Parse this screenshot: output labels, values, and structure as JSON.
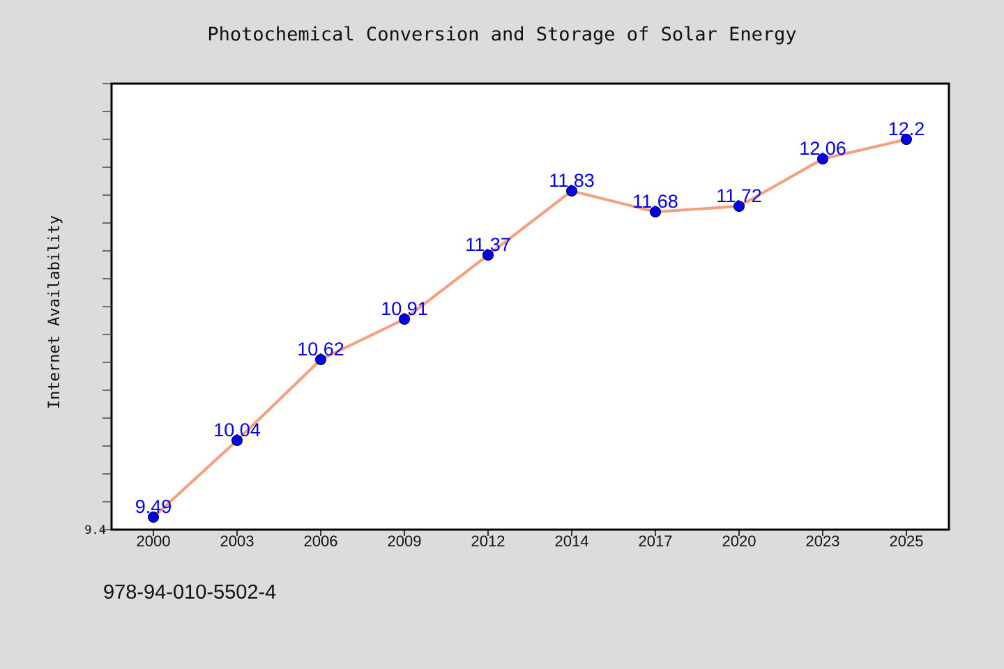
{
  "title": "Photochemical Conversion and Storage of Solar Energy",
  "isbn": "978-94-010-5502-4",
  "colors": {
    "background": "#dcdcdc",
    "plot_background": "#ffffff",
    "line": "#f4a07c",
    "marker": "#0000ee",
    "label": "#0000ee"
  },
  "chart_data": {
    "type": "line",
    "title": "Photochemical Conversion and Storage of Solar Energy",
    "xlabel": "",
    "ylabel": "Internet Availability",
    "categories": [
      "2000",
      "2003",
      "2006",
      "2009",
      "2012",
      "2014",
      "2017",
      "2020",
      "2023",
      "2025"
    ],
    "series": [
      {
        "values": [
          9.49,
          10.04,
          10.62,
          10.91,
          11.37,
          11.83,
          11.68,
          11.72,
          12.06,
          12.2
        ]
      }
    ],
    "data_labels": [
      "9.49",
      "10.04",
      "10.62",
      "10.91",
      "11.37",
      "11.83",
      "11.68",
      "11.72",
      "12.06",
      "12.2"
    ],
    "ylim": [
      9.4,
      12.6
    ],
    "yticks_labeled": [
      9.4
    ],
    "ytick_labels": [
      "9.4"
    ],
    "y_minor_step": 0.2,
    "grid": false,
    "legend": "none"
  }
}
